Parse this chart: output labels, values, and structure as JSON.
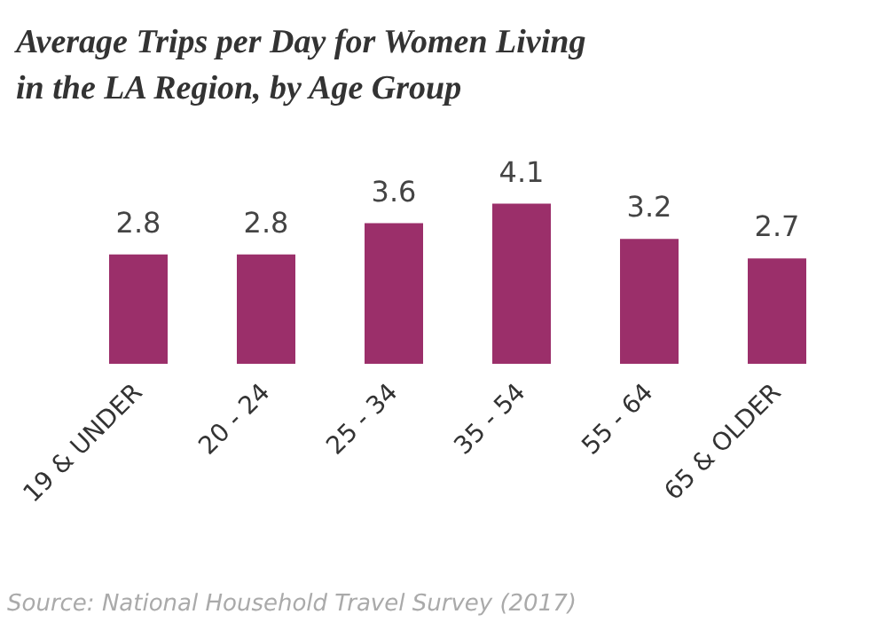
{
  "chart_data": {
    "type": "bar",
    "title": "Average Trips per Day for Women Living in the LA Region, by Age Group",
    "categories": [
      "19 & UNDER",
      "20 - 24",
      "25 - 34",
      "35 - 54",
      "55 - 64",
      "65 & OLDER"
    ],
    "values": [
      2.8,
      2.8,
      3.6,
      4.1,
      3.2,
      2.7
    ],
    "color": "#9b2f6a",
    "data_labels": true,
    "annotations": [
      "Source: National Household Travel Survey (2017)"
    ]
  }
}
